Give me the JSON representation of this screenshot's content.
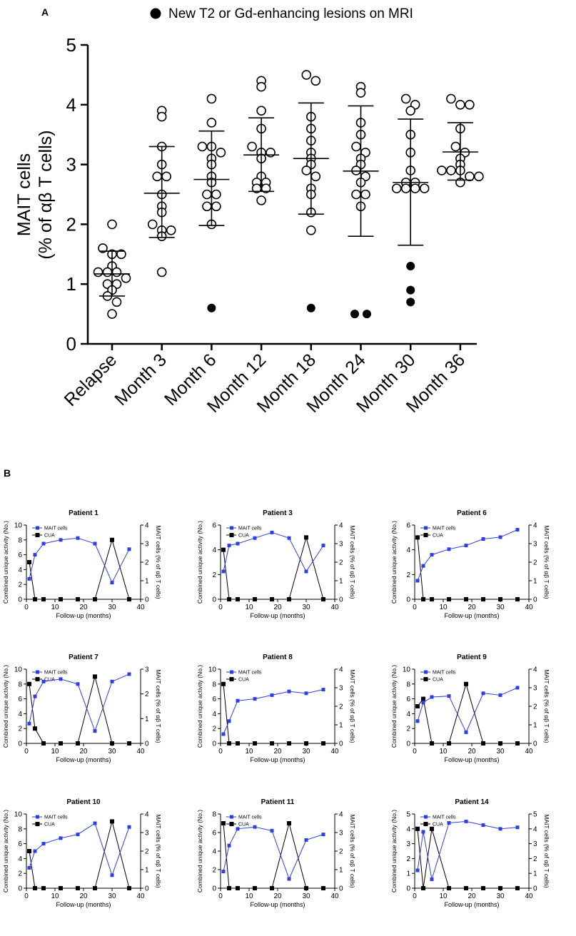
{
  "panel_a": {
    "label": "A",
    "chart_data": {
      "type": "scatter",
      "legend": {
        "marker": "filled-circle",
        "label": "New T2 or Gd-enhancing lesions on MRI"
      },
      "ylabel_line1": "MAIT cells",
      "ylabel_line2": "(% of αβ T cells)",
      "ylim": [
        0,
        5
      ],
      "yticks": [
        0,
        1,
        2,
        3,
        4,
        5
      ],
      "categories": [
        "Relapse",
        "Month 3",
        "Month 6",
        "Month 12",
        "Month 18",
        "Month 24",
        "Month 30",
        "Month 36"
      ],
      "groups": [
        {
          "mean": 1.17,
          "sd_low": 0.8,
          "sd_high": 1.55,
          "points": [
            2.0,
            1.6,
            1.5,
            1.5,
            1.3,
            1.2,
            1.2,
            1.2,
            1.1,
            1.0,
            1.0,
            0.9,
            0.8,
            0.7,
            0.5
          ],
          "lesion_points": []
        },
        {
          "mean": 2.52,
          "sd_low": 1.78,
          "sd_high": 3.3,
          "points": [
            3.9,
            3.8,
            3.3,
            3.0,
            2.8,
            2.8,
            2.5,
            2.3,
            2.2,
            2.0,
            1.9,
            1.9,
            1.8,
            1.2
          ],
          "lesion_points": []
        },
        {
          "mean": 2.75,
          "sd_low": 1.98,
          "sd_high": 3.56,
          "points": [
            4.1,
            3.7,
            3.3,
            3.3,
            3.2,
            3.1,
            3.0,
            2.8,
            2.7,
            2.5,
            2.5,
            2.3,
            2.3,
            2.0
          ],
          "lesion_points": [
            0.6
          ]
        },
        {
          "mean": 3.16,
          "sd_low": 2.55,
          "sd_high": 3.78,
          "points": [
            4.4,
            4.3,
            3.9,
            3.6,
            3.3,
            3.2,
            3.2,
            3.1,
            2.8,
            2.7,
            2.7,
            2.6,
            2.6,
            2.4
          ],
          "lesion_points": []
        },
        {
          "mean": 3.1,
          "sd_low": 2.17,
          "sd_high": 4.03,
          "points": [
            4.5,
            4.4,
            3.8,
            3.6,
            3.4,
            3.2,
            3.1,
            3.0,
            2.9,
            2.8,
            2.6,
            2.5,
            2.2,
            1.9
          ],
          "lesion_points": [
            0.6
          ]
        },
        {
          "mean": 2.89,
          "sd_low": 1.8,
          "sd_high": 3.98,
          "points": [
            4.3,
            4.2,
            3.7,
            3.5,
            3.3,
            3.2,
            3.1,
            3.0,
            2.9,
            2.8,
            2.7,
            2.5,
            2.5,
            2.3
          ],
          "lesion_points": [
            0.5,
            0.5
          ]
        },
        {
          "mean": 2.7,
          "sd_low": 1.65,
          "sd_high": 3.76,
          "points": [
            4.1,
            4.0,
            3.9,
            3.5,
            3.2,
            2.9,
            2.7,
            2.7,
            2.6,
            2.6,
            2.6,
            2.6
          ],
          "lesion_points": [
            1.3,
            0.9,
            0.7
          ]
        },
        {
          "mean": 3.21,
          "sd_low": 2.74,
          "sd_high": 3.7,
          "points": [
            4.1,
            4.0,
            4.0,
            3.6,
            3.3,
            3.2,
            3.1,
            3.0,
            2.9,
            2.9,
            2.9,
            2.8,
            2.8,
            2.7
          ],
          "lesion_points": []
        }
      ]
    }
  },
  "panel_b": {
    "label": "B",
    "chart_data": [
      {
        "title": "Patient 1",
        "type": "line",
        "left_ylabel": "Combined unique activity (No.)",
        "right_ylabel": "MAIT cells (% of αβ T cells)",
        "xlabel": "Follow-up (months)",
        "xlim": [
          0,
          40
        ],
        "xticks": [
          0,
          10,
          20,
          30,
          40
        ],
        "left_ylim": [
          0,
          10
        ],
        "left_yticks": [
          0,
          2,
          4,
          6,
          8,
          10
        ],
        "right_ylim": [
          0,
          4
        ],
        "right_yticks": [
          0,
          1,
          2,
          3,
          4
        ],
        "legend": [
          "MAIT cells",
          "CUA"
        ],
        "mait": {
          "x": [
            1,
            3,
            6,
            12,
            18,
            24,
            30,
            36
          ],
          "y": [
            1.1,
            2.4,
            3.0,
            3.2,
            3.3,
            3.0,
            0.9,
            2.7
          ]
        },
        "cua": {
          "x": [
            1,
            3,
            6,
            12,
            18,
            24,
            30,
            36
          ],
          "y": [
            5,
            0,
            0,
            0,
            0,
            0,
            8,
            0
          ]
        }
      },
      {
        "title": "Patient 3",
        "type": "line",
        "left_ylabel": "Combined unique activity (No.)",
        "right_ylabel": "MAIT cells (% of αβ T cells)",
        "xlabel": "Follow-up (months)",
        "xlim": [
          0,
          40
        ],
        "xticks": [
          0,
          10,
          20,
          30,
          40
        ],
        "left_ylim": [
          0,
          6
        ],
        "left_yticks": [
          0,
          2,
          4,
          6
        ],
        "right_ylim": [
          0,
          4
        ],
        "right_yticks": [
          0,
          1,
          2,
          3,
          4
        ],
        "legend": [
          "MAIT cells",
          "CUA"
        ],
        "mait": {
          "x": [
            1,
            3,
            6,
            12,
            18,
            24,
            30,
            36
          ],
          "y": [
            1.5,
            2.9,
            3.0,
            3.3,
            3.6,
            3.3,
            1.5,
            2.9
          ]
        },
        "cua": {
          "x": [
            1,
            3,
            6,
            12,
            18,
            24,
            30,
            36
          ],
          "y": [
            4,
            0,
            0,
            0,
            0,
            0,
            5,
            0
          ]
        }
      },
      {
        "title": "Patient 6",
        "type": "line",
        "left_ylabel": "Combined unique activity (No.)",
        "right_ylabel": "MAIT cells (% of αβ T cells)",
        "xlabel": "Follow-up (months)",
        "xlim": [
          0,
          40
        ],
        "xticks": [
          0,
          10,
          20,
          30,
          40
        ],
        "left_ylim": [
          0,
          6
        ],
        "left_yticks": [
          0,
          2,
          4,
          6
        ],
        "right_ylim": [
          0,
          4
        ],
        "right_yticks": [
          0,
          1,
          2,
          3,
          4
        ],
        "legend": [
          "MAIT cells",
          "CUA"
        ],
        "mait": {
          "x": [
            1,
            3,
            6,
            12,
            18,
            24,
            30,
            36
          ],
          "y": [
            1.0,
            1.8,
            2.4,
            2.7,
            2.9,
            3.25,
            3.35,
            3.75
          ]
        },
        "cua": {
          "x": [
            1,
            3,
            6,
            12,
            18,
            24,
            30,
            36
          ],
          "y": [
            5,
            0,
            0,
            0,
            0,
            0,
            0,
            0
          ]
        }
      },
      {
        "title": "Patient 7",
        "type": "line",
        "left_ylabel": "Combined unique activity (No.)",
        "right_ylabel": "MAIT cells (% of αβ T cells)",
        "xlabel": "Follow-up (months)",
        "xlim": [
          0,
          40
        ],
        "xticks": [
          0,
          10,
          20,
          30,
          40
        ],
        "left_ylim": [
          0,
          10
        ],
        "left_yticks": [
          0,
          2,
          4,
          6,
          8,
          10
        ],
        "right_ylim": [
          0,
          3
        ],
        "right_yticks": [
          0,
          1,
          2,
          3
        ],
        "legend": [
          "MAIT cells",
          "CUA"
        ],
        "mait": {
          "x": [
            1,
            3,
            6,
            12,
            18,
            24,
            30,
            36
          ],
          "y": [
            0.8,
            1.9,
            2.5,
            2.6,
            2.4,
            0.5,
            2.5,
            2.8
          ]
        },
        "cua": {
          "x": [
            1,
            3,
            6,
            12,
            18,
            24,
            30,
            36
          ],
          "y": [
            8,
            2,
            0,
            0,
            0,
            9,
            0,
            0
          ]
        }
      },
      {
        "title": "Patient 8",
        "type": "line",
        "left_ylabel": "Combined unique activity (No.)",
        "right_ylabel": "MAIT cells (% of αβ T cells)",
        "xlabel": "Follow-up (months)",
        "xlim": [
          0,
          40
        ],
        "xticks": [
          0,
          10,
          20,
          30,
          40
        ],
        "left_ylim": [
          0,
          10
        ],
        "left_yticks": [
          0,
          2,
          4,
          6,
          8,
          10
        ],
        "right_ylim": [
          0,
          4
        ],
        "right_yticks": [
          0,
          1,
          2,
          3,
          4
        ],
        "legend": [
          "MAIT cells",
          "CUA"
        ],
        "mait": {
          "x": [
            1,
            3,
            6,
            12,
            18,
            24,
            30,
            36
          ],
          "y": [
            0.5,
            1.2,
            2.3,
            2.4,
            2.6,
            2.8,
            2.7,
            2.9
          ]
        },
        "cua": {
          "x": [
            1,
            3,
            6,
            12,
            18,
            24,
            30,
            36
          ],
          "y": [
            8,
            0,
            0,
            0,
            0,
            0,
            0,
            0
          ]
        }
      },
      {
        "title": "Patient 9",
        "type": "line",
        "left_ylabel": "Combined unique activity (No.)",
        "right_ylabel": "MAIT cells (% of αβ T cells)",
        "xlabel": "Follow-up (months)",
        "xlim": [
          0,
          40
        ],
        "xticks": [
          0,
          10,
          20,
          30,
          40
        ],
        "left_ylim": [
          0,
          10
        ],
        "left_yticks": [
          0,
          2,
          4,
          6,
          8,
          10
        ],
        "right_ylim": [
          0,
          4
        ],
        "right_yticks": [
          0,
          1,
          2,
          3,
          4
        ],
        "legend": [
          "MAIT cells",
          "CUA"
        ],
        "mait": {
          "x": [
            1,
            3,
            6,
            12,
            18,
            24,
            30,
            36
          ],
          "y": [
            1.2,
            2.2,
            2.5,
            2.55,
            0.6,
            2.7,
            2.6,
            3.0
          ]
        },
        "cua": {
          "x": [
            1,
            3,
            6,
            12,
            18,
            24,
            30,
            36
          ],
          "y": [
            5,
            6,
            0,
            0,
            8,
            0,
            0,
            0
          ]
        }
      },
      {
        "title": "Patient 10",
        "type": "line",
        "left_ylabel": "Combined unique activity (No.)",
        "right_ylabel": "MAIT cells (% of αβ T cells)",
        "xlabel": "Follow-up (months)",
        "xlim": [
          0,
          40
        ],
        "xticks": [
          0,
          10,
          20,
          30,
          40
        ],
        "left_ylim": [
          0,
          10
        ],
        "left_yticks": [
          0,
          2,
          4,
          6,
          8,
          10
        ],
        "right_ylim": [
          0,
          4
        ],
        "right_yticks": [
          0,
          1,
          2,
          3,
          4
        ],
        "legend": [
          "MAIT cells",
          "CUA"
        ],
        "mait": {
          "x": [
            1,
            3,
            6,
            12,
            18,
            24,
            30,
            36
          ],
          "y": [
            1.1,
            2.0,
            2.4,
            2.7,
            2.9,
            3.5,
            0.7,
            3.3
          ]
        },
        "cua": {
          "x": [
            1,
            3,
            6,
            12,
            18,
            24,
            30,
            36
          ],
          "y": [
            5,
            0,
            0,
            0,
            0,
            0,
            9,
            0
          ]
        }
      },
      {
        "title": "Patient 11",
        "type": "line",
        "left_ylabel": "Combined unique activity (No.)",
        "right_ylabel": "MAIT cells (% of αβ T cells)",
        "xlabel": "Follow-up (months)",
        "xlim": [
          0,
          40
        ],
        "xticks": [
          0,
          10,
          20,
          30,
          40
        ],
        "left_ylim": [
          0,
          8
        ],
        "left_yticks": [
          0,
          2,
          4,
          6,
          8
        ],
        "right_ylim": [
          0,
          4
        ],
        "right_yticks": [
          0,
          1,
          2,
          3,
          4
        ],
        "legend": [
          "MAIT cells",
          "CUA"
        ],
        "mait": {
          "x": [
            1,
            3,
            6,
            12,
            18,
            24,
            30,
            36
          ],
          "y": [
            0.9,
            2.3,
            3.2,
            3.3,
            3.1,
            0.5,
            2.6,
            2.9
          ]
        },
        "cua": {
          "x": [
            1,
            3,
            6,
            12,
            18,
            24,
            30,
            36
          ],
          "y": [
            7,
            0,
            0,
            0,
            0,
            7,
            0,
            0
          ]
        }
      },
      {
        "title": "Patient 14",
        "type": "line",
        "left_ylabel": "Combined unique activity (No.)",
        "right_ylabel": "MAIT cells (% of αβ T cells)",
        "xlabel": "Follow-up (months)",
        "xlim": [
          0,
          40
        ],
        "xticks": [
          0,
          10,
          20,
          30,
          40
        ],
        "left_ylim": [
          0,
          5
        ],
        "left_yticks": [
          0,
          1,
          2,
          3,
          4,
          5
        ],
        "right_ylim": [
          0,
          5
        ],
        "right_yticks": [
          0,
          1,
          2,
          3,
          4,
          5
        ],
        "legend": [
          "MAIT cells",
          "CUA"
        ],
        "mait": {
          "x": [
            1,
            3,
            6,
            12,
            18,
            24,
            30,
            36
          ],
          "y": [
            1.2,
            3.8,
            0.6,
            4.4,
            4.5,
            4.25,
            4.0,
            4.1
          ]
        },
        "cua": {
          "x": [
            1,
            3,
            6,
            12,
            18,
            24,
            30,
            36
          ],
          "y": [
            4,
            0,
            4,
            0,
            0,
            0,
            0,
            0
          ]
        }
      }
    ]
  }
}
